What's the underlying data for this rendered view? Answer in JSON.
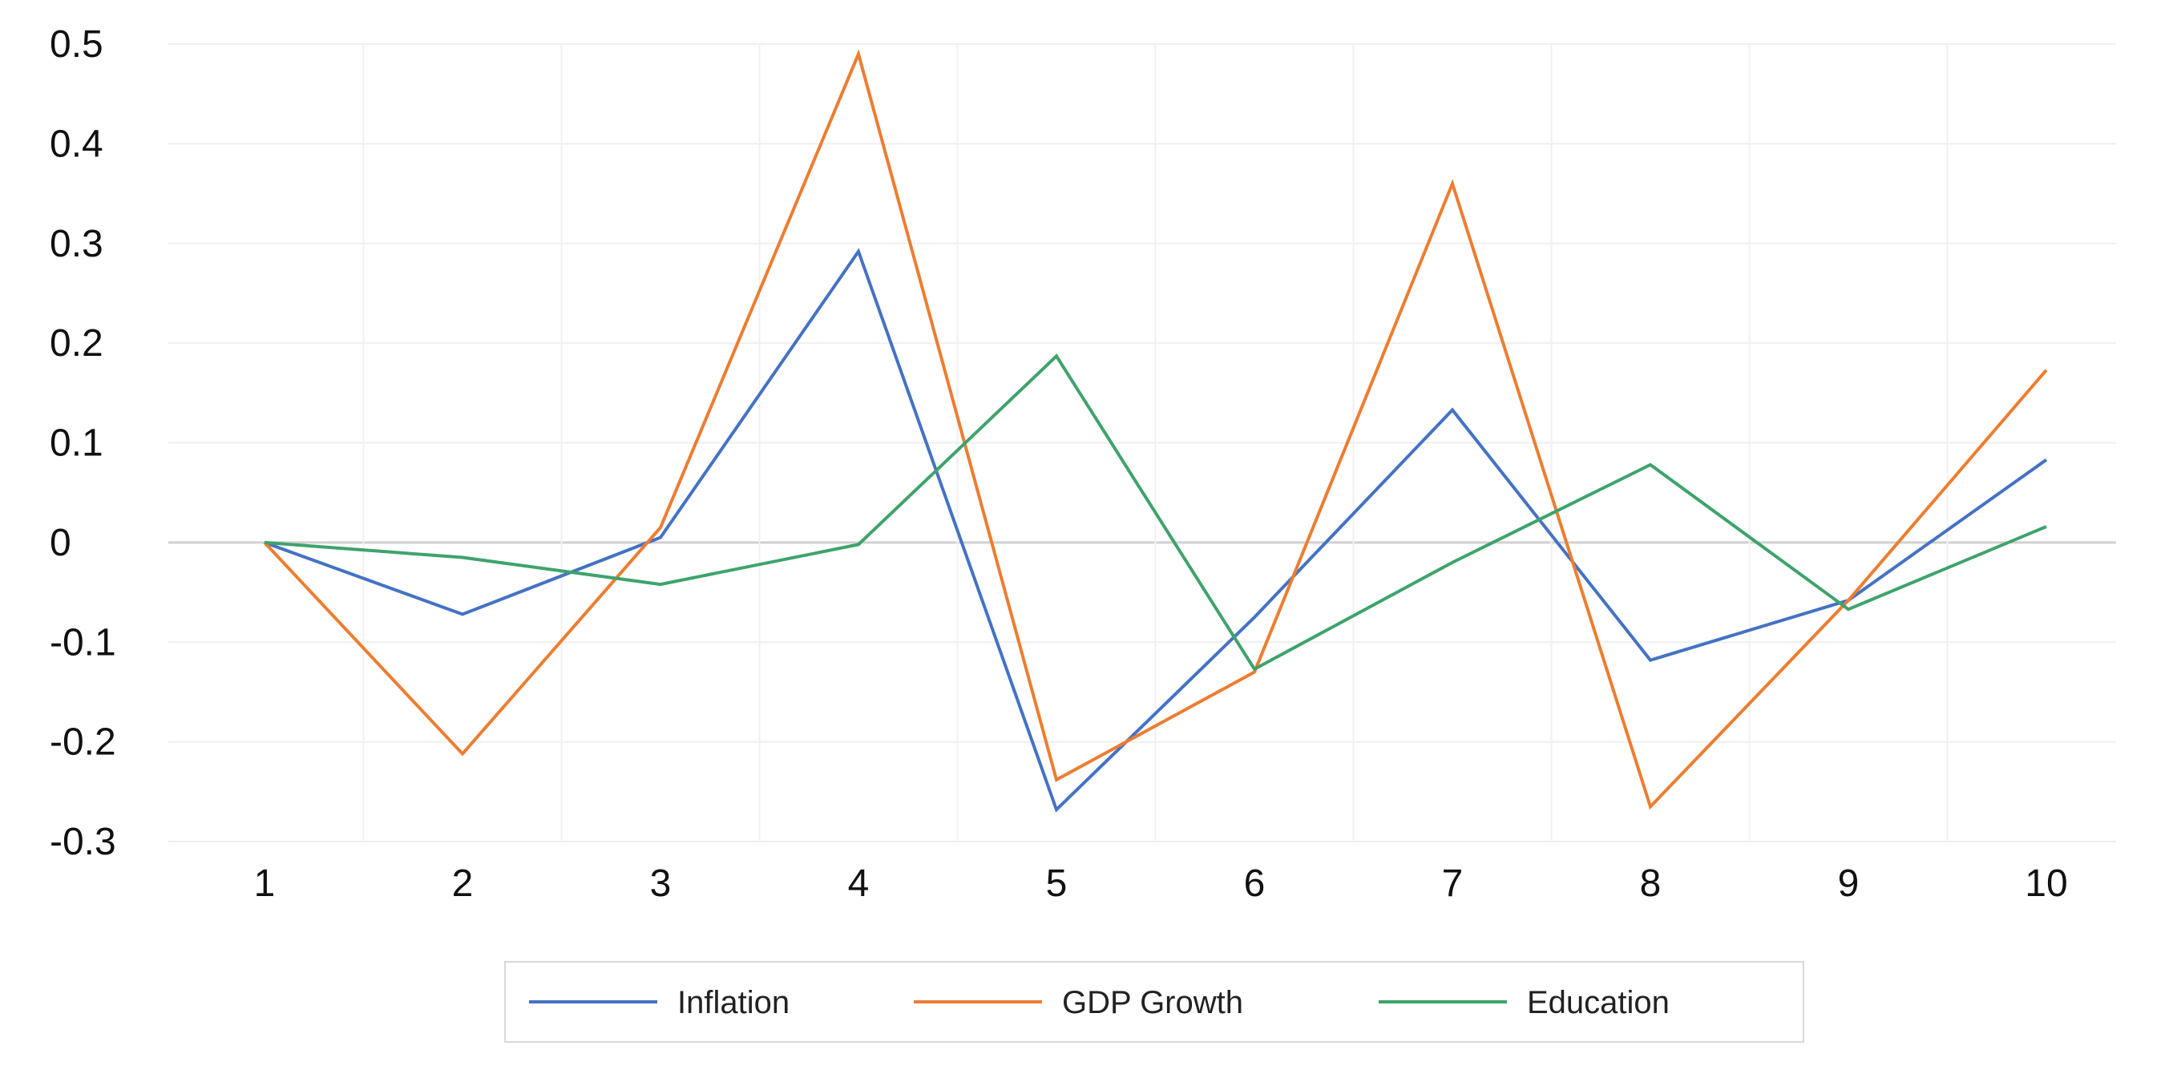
{
  "chart_data": {
    "type": "line",
    "title": "",
    "xlabel": "",
    "ylabel": "",
    "x": [
      "1",
      "2",
      "3",
      "4",
      "5",
      "6",
      "7",
      "8",
      "9",
      "10"
    ],
    "ylim": [
      -0.3,
      0.5
    ],
    "y_ticks": [
      "0.5",
      "0.4",
      "0.3",
      "0.2",
      "0.1",
      "0",
      "-0.1",
      "-0.2",
      "-0.3"
    ],
    "grid": true,
    "legend_position": "bottom",
    "series": [
      {
        "name": "Inflation",
        "color": "#4472C4",
        "values": [
          0,
          -0.072,
          0.005,
          0.292,
          -0.268,
          -0.075,
          0.133,
          -0.118,
          -0.058,
          0.083
        ]
      },
      {
        "name": "GDP Growth",
        "color": "#ED7D31",
        "values": [
          0,
          -0.212,
          0.015,
          0.49,
          -0.238,
          -0.13,
          0.36,
          -0.265,
          -0.058,
          0.173
        ]
      },
      {
        "name": "Education",
        "color": "#3EA36B",
        "values": [
          0,
          -0.015,
          -0.042,
          -0.002,
          0.187,
          -0.127,
          -0.02,
          0.078,
          -0.067,
          0.016
        ]
      }
    ]
  }
}
